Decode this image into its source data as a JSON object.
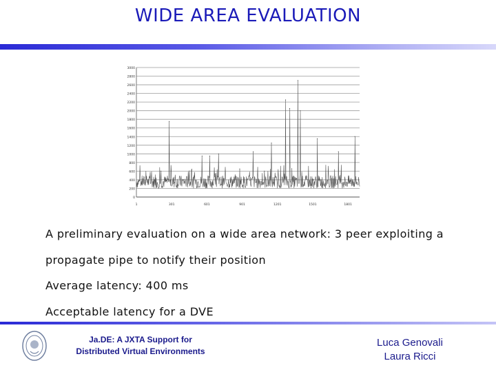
{
  "slide": {
    "title": "WIDE AREA  EVALUATION",
    "lines": [
      "A preliminary evaluation on a wide area network:  3  peer exploiting a",
      "propagate pipe to notify their position",
      "Average latency: 400 ms",
      "Acceptable latency for a DVE"
    ],
    "footer": {
      "center_line1": "Ja.DE: A JXTA Support for",
      "center_line2": "Distributed Virtual Environments",
      "right_line1": "Luca Genovali",
      "right_line2": "Laura Ricci"
    }
  },
  "chart_data": {
    "type": "line",
    "ylim": [
      0,
      3000
    ],
    "yticks": [
      "0",
      "200",
      "400",
      "600",
      "800",
      "1000",
      "1200",
      "1400",
      "1600",
      "1800",
      "2000",
      "2200",
      "2400",
      "2600",
      "2800",
      "3000"
    ],
    "xlim": [
      1,
      1900
    ],
    "xticks": [
      "1",
      "301",
      "601",
      "901",
      "1201",
      "1501",
      "1801"
    ],
    "baseline_range": [
      200,
      500
    ],
    "peaks": [
      {
        "x": 95,
        "y": 400
      },
      {
        "x": 210,
        "y": 600
      },
      {
        "x": 280,
        "y": 1750
      },
      {
        "x": 560,
        "y": 950
      },
      {
        "x": 625,
        "y": 950
      },
      {
        "x": 700,
        "y": 1000
      },
      {
        "x": 880,
        "y": 650
      },
      {
        "x": 995,
        "y": 1050
      },
      {
        "x": 1090,
        "y": 600
      },
      {
        "x": 1150,
        "y": 1250
      },
      {
        "x": 1270,
        "y": 2250
      },
      {
        "x": 1305,
        "y": 2050
      },
      {
        "x": 1375,
        "y": 2700
      },
      {
        "x": 1395,
        "y": 2000
      },
      {
        "x": 1540,
        "y": 1350
      },
      {
        "x": 1720,
        "y": 1050
      },
      {
        "x": 1860,
        "y": 1400
      }
    ],
    "line_color": "#555555",
    "grid": true
  }
}
